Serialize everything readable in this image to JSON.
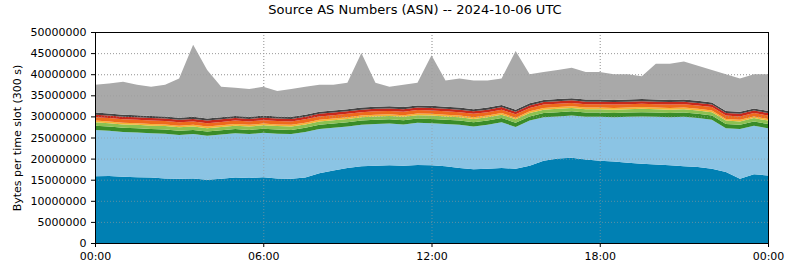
{
  "chart_data": {
    "type": "area",
    "title": "Source AS Numbers (ASN) -- 2024-10-06 UTC",
    "y_label": "Bytes per time slot (300 s)",
    "stacked": true,
    "grid": true,
    "x": [
      0,
      0.5,
      1,
      1.5,
      2,
      2.5,
      3,
      3.5,
      4,
      4.5,
      5,
      5.5,
      6,
      6.5,
      7,
      7.5,
      8,
      8.5,
      9,
      9.5,
      10,
      10.5,
      11,
      11.5,
      12,
      12.5,
      13,
      13.5,
      14,
      14.5,
      15,
      15.5,
      16,
      16.5,
      17,
      17.5,
      18,
      18.5,
      19,
      19.5,
      20,
      20.5,
      21,
      21.5,
      22,
      22.5,
      23,
      23.5,
      24
    ],
    "xlim": [
      0,
      24
    ],
    "xticks": [
      {
        "value": 0,
        "label": "00:00"
      },
      {
        "value": 6,
        "label": "06:00"
      },
      {
        "value": 12,
        "label": "12:00"
      },
      {
        "value": 18,
        "label": "18:00"
      },
      {
        "value": 24,
        "label": "00:00"
      }
    ],
    "ylim": [
      0,
      50000000
    ],
    "yticks": [
      0,
      5000000,
      10000000,
      15000000,
      20000000,
      25000000,
      30000000,
      35000000,
      40000000,
      45000000,
      50000000
    ],
    "series": [
      {
        "color": "#0080b3",
        "values": [
          15800000,
          15900000,
          15700000,
          15600000,
          15500000,
          15300000,
          15200000,
          15300000,
          15000000,
          15200000,
          15500000,
          15400000,
          15600000,
          15300000,
          15200000,
          15500000,
          16500000,
          17200000,
          17800000,
          18200000,
          18300000,
          18400000,
          18300000,
          18500000,
          18400000,
          18200000,
          17800000,
          17500000,
          17600000,
          17800000,
          17600000,
          18300000,
          19500000,
          20000000,
          20200000,
          19800000,
          19500000,
          19300000,
          19000000,
          18800000,
          18600000,
          18400000,
          18200000,
          18000000,
          17600000,
          16800000,
          15200000,
          16300000,
          16000000
        ]
      },
      {
        "color": "#8bc4e4",
        "values": [
          11000000,
          10700000,
          10600000,
          10600000,
          10500000,
          10600000,
          10400000,
          10500000,
          10400000,
          10500000,
          10500000,
          10400000,
          10500000,
          10600000,
          10600000,
          10800000,
          10500000,
          10100000,
          9800000,
          9800000,
          9900000,
          9900000,
          9800000,
          10000000,
          10000000,
          10000000,
          10200000,
          10100000,
          10400000,
          10800000,
          9900000,
          10700000,
          10300000,
          10000000,
          10000000,
          10100000,
          10400000,
          10500000,
          10900000,
          11200000,
          11300000,
          11400000,
          11700000,
          11600000,
          11600000,
          10400000,
          11800000,
          11500000,
          11200000
        ]
      },
      {
        "color": "#3a8c28",
        "values": [
          1000000,
          1000000,
          1000000,
          1000000,
          1000000,
          1000000,
          1000000,
          1000000,
          1000000,
          1000000,
          1000000,
          1000000,
          1000000,
          1000000,
          1000000,
          1000000,
          1000000,
          1000000,
          1000000,
          1000000,
          1000000,
          1000000,
          1000000,
          1000000,
          1000000,
          1000000,
          1000000,
          1000000,
          1000000,
          1000000,
          1000000,
          1000000,
          1000000,
          1000000,
          1000000,
          1000000,
          1000000,
          1000000,
          1000000,
          1000000,
          1000000,
          1000000,
          1000000,
          1000000,
          1000000,
          1000000,
          1000000,
          1000000,
          1000000
        ]
      },
      {
        "color": "#8cc152",
        "values": [
          800000,
          800000,
          800000,
          800000,
          800000,
          800000,
          800000,
          800000,
          800000,
          800000,
          800000,
          800000,
          800000,
          800000,
          800000,
          800000,
          800000,
          800000,
          800000,
          800000,
          800000,
          800000,
          800000,
          800000,
          800000,
          800000,
          800000,
          800000,
          800000,
          800000,
          800000,
          800000,
          800000,
          800000,
          800000,
          800000,
          800000,
          800000,
          800000,
          800000,
          800000,
          800000,
          800000,
          800000,
          800000,
          800000,
          800000,
          800000,
          800000
        ]
      },
      {
        "color": "#f5b335",
        "values": [
          400000,
          400000,
          400000,
          400000,
          400000,
          400000,
          400000,
          400000,
          400000,
          400000,
          400000,
          400000,
          400000,
          400000,
          400000,
          400000,
          400000,
          400000,
          400000,
          400000,
          400000,
          400000,
          400000,
          400000,
          400000,
          400000,
          400000,
          400000,
          400000,
          400000,
          400000,
          400000,
          400000,
          400000,
          400000,
          400000,
          400000,
          400000,
          400000,
          400000,
          400000,
          400000,
          400000,
          400000,
          400000,
          400000,
          400000,
          400000,
          400000
        ]
      },
      {
        "color": "#ee6a1c",
        "values": [
          800000,
          800000,
          800000,
          800000,
          800000,
          800000,
          800000,
          800000,
          800000,
          800000,
          800000,
          800000,
          800000,
          800000,
          800000,
          800000,
          800000,
          800000,
          800000,
          800000,
          800000,
          800000,
          800000,
          800000,
          800000,
          800000,
          800000,
          800000,
          800000,
          800000,
          800000,
          800000,
          800000,
          800000,
          800000,
          800000,
          800000,
          800000,
          800000,
          800000,
          800000,
          800000,
          800000,
          800000,
          800000,
          800000,
          800000,
          800000,
          800000
        ]
      },
      {
        "color": "#c8281c",
        "values": [
          600000,
          600000,
          600000,
          600000,
          600000,
          600000,
          600000,
          600000,
          600000,
          600000,
          600000,
          600000,
          600000,
          600000,
          600000,
          600000,
          600000,
          600000,
          600000,
          600000,
          600000,
          600000,
          600000,
          600000,
          600000,
          600000,
          600000,
          600000,
          600000,
          600000,
          600000,
          600000,
          600000,
          600000,
          600000,
          600000,
          600000,
          600000,
          600000,
          600000,
          600000,
          600000,
          600000,
          600000,
          600000,
          600000,
          600000,
          600000,
          600000
        ]
      },
      {
        "color": "#444444",
        "values": [
          500000,
          500000,
          500000,
          500000,
          500000,
          500000,
          500000,
          500000,
          500000,
          500000,
          500000,
          500000,
          500000,
          500000,
          500000,
          500000,
          500000,
          500000,
          500000,
          500000,
          500000,
          500000,
          500000,
          500000,
          500000,
          500000,
          500000,
          500000,
          500000,
          500000,
          500000,
          500000,
          500000,
          500000,
          500000,
          500000,
          500000,
          500000,
          500000,
          500000,
          500000,
          500000,
          500000,
          500000,
          500000,
          500000,
          500000,
          500000,
          500000
        ]
      },
      {
        "color": "#a9a9a9",
        "values": [
          6600000,
          7100000,
          7800000,
          7200000,
          6900000,
          7500000,
          9300000,
          17100000,
          11500000,
          7200000,
          6700000,
          6600000,
          6800000,
          6000000,
          6600000,
          6600000,
          6400000,
          6100000,
          6300000,
          12900000,
          5700000,
          4600000,
          5300000,
          5400000,
          12000000,
          6200000,
          6900000,
          6800000,
          6400000,
          6300000,
          13900000,
          6900000,
          6600000,
          6900000,
          7200000,
          6500000,
          6500000,
          6100000,
          6000000,
          5400000,
          8500000,
          8600000,
          9000000,
          8300000,
          7700000,
          8700000,
          7900000,
          8100000,
          8700000
        ]
      }
    ]
  }
}
